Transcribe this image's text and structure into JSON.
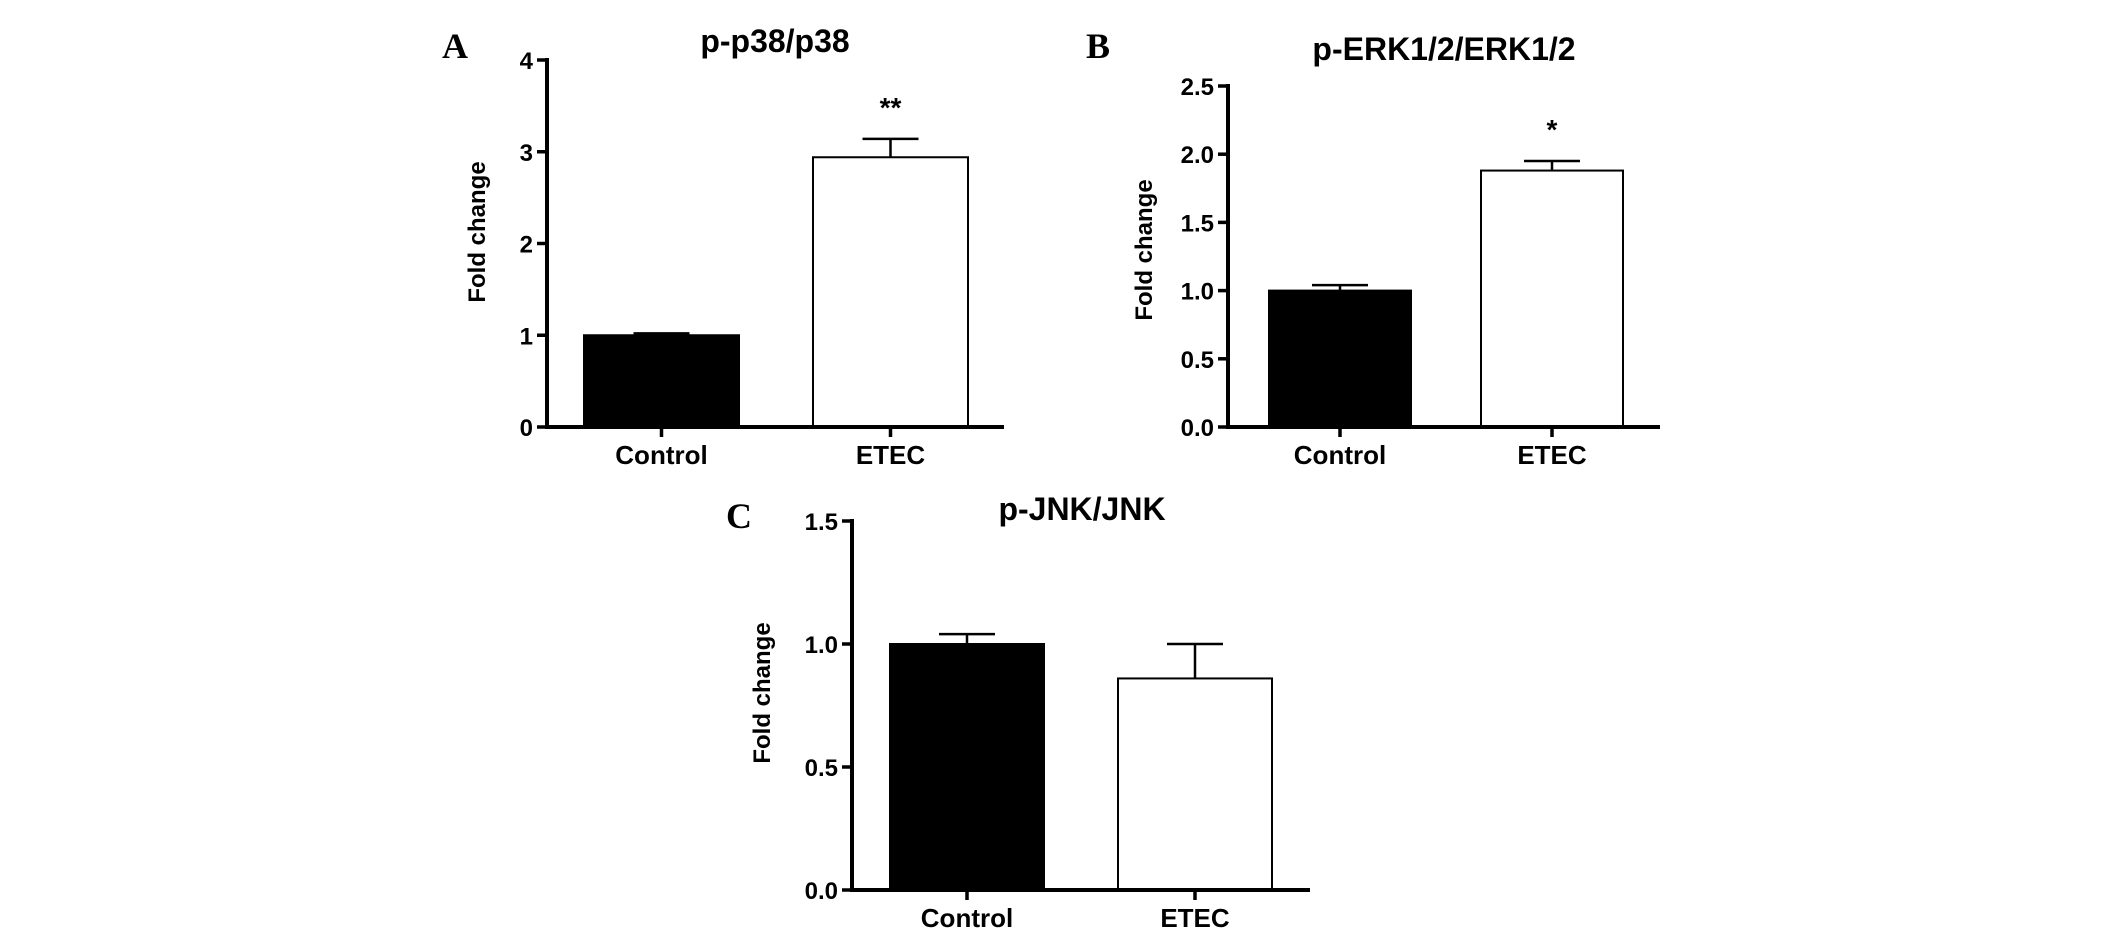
{
  "colors": {
    "axis": "#000000",
    "control_bar": "#000000",
    "etec_bar": "#ffffff",
    "bar_outline": "#000000"
  },
  "chart_data": [
    {
      "panel": "A",
      "type": "bar",
      "title": "p-p38/p38",
      "xlabel": "",
      "ylabel": "Fold change",
      "ylim": [
        0,
        4
      ],
      "yticks": [
        "0",
        "1",
        "2",
        "3",
        "4"
      ],
      "categories": [
        "Control",
        "ETEC"
      ],
      "values": [
        1.0,
        2.94
      ],
      "error": [
        0.02,
        0.2
      ],
      "significance": [
        "",
        "**"
      ],
      "grid": false,
      "legend": "none"
    },
    {
      "panel": "B",
      "type": "bar",
      "title": "p-ERK1/2/ERK1/2",
      "xlabel": "",
      "ylabel": "Fold change",
      "ylim": [
        0,
        2.5
      ],
      "yticks": [
        "0.0",
        "0.5",
        "1.0",
        "1.5",
        "2.0",
        "2.5"
      ],
      "categories": [
        "Control",
        "ETEC"
      ],
      "values": [
        1.0,
        1.88
      ],
      "error": [
        0.04,
        0.07
      ],
      "significance": [
        "",
        "*"
      ],
      "grid": false,
      "legend": "none"
    },
    {
      "panel": "C",
      "type": "bar",
      "title": "p-JNK/JNK",
      "xlabel": "",
      "ylabel": "Fold change",
      "ylim": [
        0,
        1.5
      ],
      "yticks": [
        "0.0",
        "0.5",
        "1.0",
        "1.5"
      ],
      "categories": [
        "Control",
        "ETEC"
      ],
      "values": [
        1.0,
        0.86
      ],
      "error": [
        0.04,
        0.14
      ],
      "significance": [
        "",
        ""
      ],
      "grid": false,
      "legend": "none"
    }
  ]
}
